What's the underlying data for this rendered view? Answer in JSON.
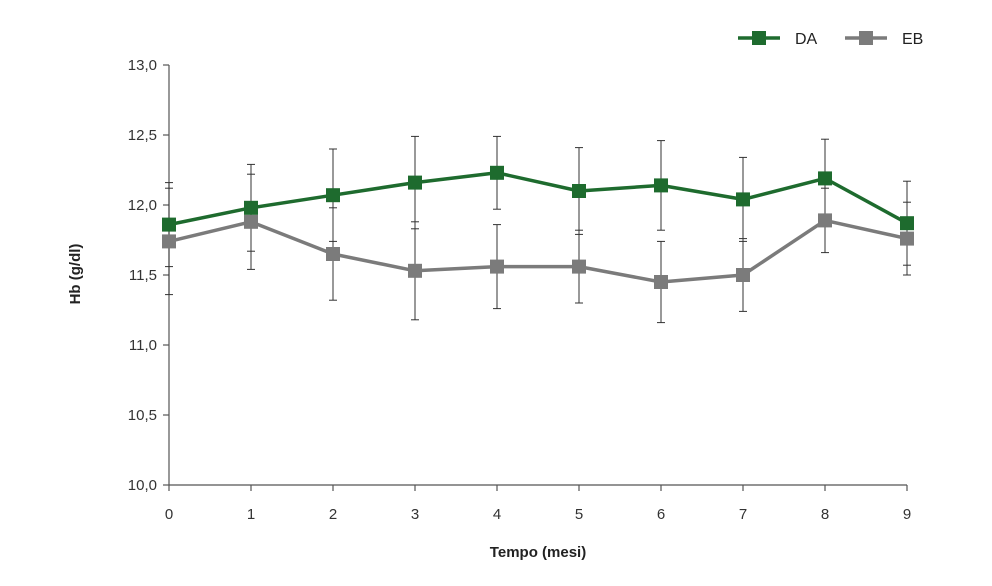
{
  "chart_data": {
    "type": "line",
    "xlabel": "Tempo (mesi)",
    "ylabel": "Hb (g/dl)",
    "x": [
      0,
      1,
      2,
      3,
      4,
      5,
      6,
      7,
      8,
      9
    ],
    "x_tick_labels": [
      "0",
      "1",
      "2",
      "3",
      "4",
      "5",
      "6",
      "7",
      "8",
      "9"
    ],
    "y_tick_labels": [
      "10,0",
      "10,5",
      "11,0",
      "11,5",
      "12,0",
      "12,5",
      "13,0"
    ],
    "y_ticks": [
      10.0,
      10.5,
      11.0,
      11.5,
      12.0,
      12.5,
      13.0
    ],
    "ylim": [
      10.0,
      13.0
    ],
    "xlim": [
      0,
      9
    ],
    "grid": false,
    "legend_position": "top-right",
    "series": [
      {
        "name": "DA",
        "color": "#1e6b2e",
        "values": [
          11.86,
          11.98,
          12.07,
          12.16,
          12.23,
          12.1,
          12.14,
          12.04,
          12.19,
          11.87
        ],
        "error": [
          0.3,
          0.31,
          0.33,
          0.33,
          0.26,
          0.31,
          0.32,
          0.3,
          0.28,
          0.3
        ]
      },
      {
        "name": "EB",
        "color": "#7b7b7b",
        "values": [
          11.74,
          11.88,
          11.65,
          11.53,
          11.56,
          11.56,
          11.45,
          11.5,
          11.89,
          11.76
        ],
        "error": [
          0.38,
          0.34,
          0.33,
          0.35,
          0.3,
          0.26,
          0.29,
          0.26,
          0.23,
          0.26
        ]
      }
    ]
  }
}
